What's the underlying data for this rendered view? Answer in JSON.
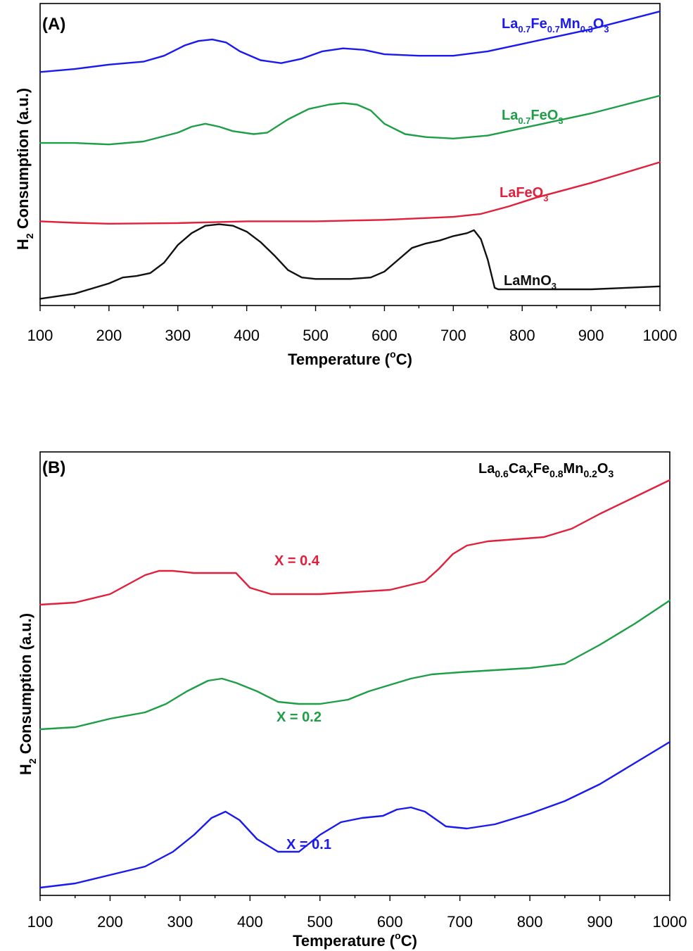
{
  "chart_data": [
    {
      "type": "line",
      "panel_label": "(A)",
      "xlabel": "Temperature (°C)",
      "ylabel": "H2 Consumption (a.u.)",
      "xlim": [
        100,
        1000
      ],
      "ylim": [
        0,
        100
      ],
      "y_ticks_shown": false,
      "x_ticks": [
        100,
        200,
        300,
        400,
        500,
        600,
        700,
        800,
        900,
        1000
      ],
      "grid": false,
      "series": [
        {
          "name": "La0.7Fe0.7Mn0.3O3",
          "color": "#1a1aee",
          "x": [
            100,
            150,
            200,
            250,
            280,
            310,
            330,
            350,
            370,
            390,
            420,
            450,
            480,
            510,
            540,
            570,
            600,
            650,
            700,
            750,
            800,
            850,
            900,
            950,
            1000
          ],
          "y": [
            78.5,
            79.5,
            81,
            82,
            84,
            87.5,
            89,
            89.5,
            88.5,
            85.5,
            82.5,
            81.5,
            83,
            85.5,
            86.5,
            86,
            84.5,
            84,
            84,
            85.5,
            88,
            90.5,
            93,
            96,
            99
          ]
        },
        {
          "name": "La0.7FeO3",
          "color": "#1e9e46",
          "x": [
            100,
            150,
            200,
            250,
            300,
            320,
            340,
            360,
            380,
            410,
            430,
            460,
            490,
            520,
            540,
            560,
            580,
            600,
            630,
            660,
            700,
            750,
            800,
            850,
            900,
            950,
            1000
          ],
          "y": [
            54.5,
            54.5,
            54,
            55,
            58,
            60,
            61,
            60,
            58.5,
            57.5,
            58,
            62.5,
            66,
            67.5,
            68,
            67.5,
            65.5,
            61,
            57.5,
            56.5,
            56,
            57,
            59.5,
            62,
            64.5,
            67.5,
            70.5
          ]
        },
        {
          "name": "LaFeO3",
          "color": "#e0203c",
          "x": [
            100,
            150,
            200,
            300,
            400,
            500,
            600,
            650,
            700,
            740,
            780,
            820,
            860,
            900,
            950,
            1000
          ],
          "y": [
            28,
            27.5,
            27.2,
            27.4,
            28,
            28,
            28.5,
            29,
            29.5,
            30.5,
            33,
            36,
            38.5,
            41,
            44.5,
            48
          ]
        },
        {
          "name": "LaMnO3",
          "color": "#111111",
          "x": [
            100,
            150,
            200,
            220,
            240,
            260,
            280,
            300,
            320,
            340,
            360,
            380,
            400,
            420,
            440,
            460,
            480,
            500,
            520,
            550,
            580,
            600,
            620,
            640,
            660,
            680,
            700,
            720,
            730,
            740,
            750,
            760,
            765,
            780,
            800,
            850,
            900,
            950,
            1000
          ],
          "y": [
            1.8,
            3.5,
            7,
            9,
            9.5,
            10.5,
            14,
            20,
            24,
            26.5,
            27,
            26.5,
            24.5,
            21,
            16.5,
            11.5,
            9,
            8.5,
            8.5,
            8.5,
            9,
            11,
            15,
            19,
            20.5,
            21.5,
            23,
            24,
            25,
            22,
            15,
            5.5,
            5,
            5,
            5,
            5,
            5,
            5.5,
            6
          ]
        }
      ],
      "annotations": [
        {
          "series": "La0.7Fe0.7Mn0.3O3",
          "text": "La0.7Fe0.7Mn0.3O3"
        },
        {
          "series": "La0.7FeO3",
          "text": "La0.7FeO3"
        },
        {
          "series": "LaFeO3",
          "text": "LaFeO3"
        },
        {
          "series": "LaMnO3",
          "text": "LaMnO3"
        }
      ]
    },
    {
      "type": "line",
      "panel_label": "(B)",
      "title": "La0.6CaxFe0.8Mn0.2O3",
      "xlabel": "Temperature (°C)",
      "ylabel": "H2 Consumption (a.u.)",
      "xlim": [
        100,
        1000
      ],
      "ylim": [
        0,
        100
      ],
      "y_ticks_shown": false,
      "x_ticks": [
        100,
        200,
        300,
        400,
        500,
        600,
        700,
        800,
        900,
        1000
      ],
      "grid": false,
      "series": [
        {
          "name": "X = 0.4",
          "color": "#e0203c",
          "x": [
            100,
            150,
            200,
            250,
            270,
            290,
            320,
            350,
            380,
            400,
            430,
            460,
            500,
            550,
            600,
            650,
            670,
            690,
            710,
            740,
            780,
            820,
            860,
            900,
            950,
            1000
          ],
          "y": [
            68.5,
            69,
            71,
            75.5,
            76.5,
            76.5,
            76,
            76,
            76,
            72.5,
            71,
            71,
            71,
            71.5,
            72,
            74,
            77,
            80.5,
            82.5,
            83.5,
            84,
            84.5,
            86.5,
            90,
            94,
            98
          ]
        },
        {
          "name": "X = 0.2",
          "color": "#1e9e46",
          "x": [
            100,
            150,
            200,
            250,
            280,
            310,
            340,
            360,
            380,
            410,
            440,
            470,
            500,
            540,
            570,
            600,
            630,
            660,
            700,
            750,
            800,
            850,
            900,
            950,
            1000
          ],
          "y": [
            39,
            39.5,
            41.5,
            43,
            45,
            48,
            50.5,
            51,
            50,
            48,
            45.5,
            45,
            45,
            46,
            48,
            49.5,
            51,
            52,
            52.5,
            53,
            53.5,
            54.5,
            59,
            64,
            69.5
          ]
        },
        {
          "name": "X = 0.1",
          "color": "#1a1aee",
          "x": [
            100,
            150,
            200,
            250,
            290,
            320,
            345,
            365,
            385,
            410,
            440,
            470,
            500,
            530,
            560,
            590,
            610,
            630,
            650,
            680,
            710,
            750,
            800,
            850,
            900,
            950,
            1000
          ],
          "y": [
            1.5,
            2.5,
            4.5,
            6.5,
            10,
            14,
            18,
            19.5,
            17.5,
            13,
            10,
            10,
            14,
            17,
            18,
            18.5,
            20,
            20.5,
            19.5,
            16,
            15.5,
            16.5,
            19,
            22,
            26,
            31,
            36
          ]
        }
      ],
      "annotations": [
        {
          "series": "X = 0.4",
          "text": "X = 0.4"
        },
        {
          "series": "X = 0.2",
          "text": "X = 0.2"
        },
        {
          "series": "X = 0.1",
          "text": "X = 0.1"
        }
      ]
    }
  ],
  "labels": {
    "panelA": {
      "panel_id": "(A)",
      "x_title": "Temperature (",
      "x_unit_sup": "o",
      "x_unit_rest": "C)",
      "y_title_main": "H",
      "y_title_sub": "2",
      "y_title_rest": " Consumption (a.u.)",
      "series_labels": [
        {
          "parts": [
            [
              "La",
              ""
            ],
            [
              "0.7",
              "sub"
            ],
            [
              "Fe",
              ""
            ],
            [
              "0.7",
              "sub"
            ],
            [
              "Mn",
              ""
            ],
            [
              "0.3",
              "sub"
            ],
            [
              "O",
              ""
            ],
            [
              "3",
              "sub"
            ]
          ],
          "color": "#1a1aee"
        },
        {
          "parts": [
            [
              "La",
              ""
            ],
            [
              "0.7",
              "sub"
            ],
            [
              "FeO",
              ""
            ],
            [
              "3",
              "sub"
            ]
          ],
          "color": "#1e9e46"
        },
        {
          "parts": [
            [
              "LaFeO",
              ""
            ],
            [
              "3",
              "sub"
            ]
          ],
          "color": "#e0203c"
        },
        {
          "parts": [
            [
              "LaMnO",
              ""
            ],
            [
              "3",
              "sub"
            ]
          ],
          "color": "#111111"
        }
      ]
    },
    "panelB": {
      "panel_id": "(B)",
      "x_title": "Temperature (",
      "x_unit_sup": "o",
      "x_unit_rest": "C)",
      "y_title_main": "H",
      "y_title_sub": "2",
      "y_title_rest": " Consumption (a.u.)",
      "title_parts": [
        [
          "La",
          ""
        ],
        [
          "0.6",
          "sub"
        ],
        [
          "Ca",
          ""
        ],
        [
          "X",
          "sub"
        ],
        [
          "Fe",
          ""
        ],
        [
          "0.8",
          "sub"
        ],
        [
          "Mn",
          ""
        ],
        [
          "0.2",
          "sub"
        ],
        [
          "O",
          ""
        ],
        [
          "3",
          "sub"
        ]
      ],
      "series_labels": [
        {
          "parts": [
            [
              "X = 0.4",
              ""
            ]
          ],
          "color": "#e0203c"
        },
        {
          "parts": [
            [
              "X = 0.2",
              ""
            ]
          ],
          "color": "#1e9e46"
        },
        {
          "parts": [
            [
              "X = 0.1",
              ""
            ]
          ],
          "color": "#1a1aee"
        }
      ]
    }
  }
}
